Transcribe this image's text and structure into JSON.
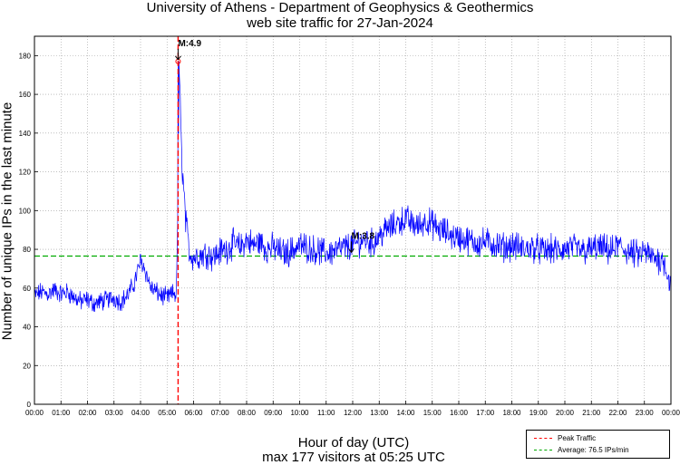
{
  "chart_data": {
    "type": "line",
    "title": "University of Athens - Department of Geophysics & Geothermics",
    "subtitle": "web site traffic for 27-Jan-2024",
    "xlabel": "Hour of day (UTC)",
    "xlabel_note": "max 177 visitors at 05:25 UTC",
    "ylabel": "Number of unique IPs in the last minute",
    "xlim": [
      0,
      24
    ],
    "ylim": [
      0,
      190
    ],
    "grid": true,
    "x_ticks": [
      "00:00",
      "01:00",
      "02:00",
      "03:00",
      "04:00",
      "05:00",
      "06:00",
      "07:00",
      "08:00",
      "09:00",
      "10:00",
      "11:00",
      "12:00",
      "13:00",
      "14:00",
      "15:00",
      "16:00",
      "17:00",
      "18:00",
      "19:00",
      "20:00",
      "21:00",
      "22:00",
      "23:00",
      "00:00"
    ],
    "y_ticks": [
      "0",
      "20",
      "40",
      "60",
      "80",
      "100",
      "120",
      "140",
      "160",
      "180"
    ],
    "series": [
      {
        "name": "traffic",
        "color": "#0000ff",
        "x": [
          0,
          0.25,
          0.5,
          0.75,
          1,
          1.25,
          1.5,
          1.75,
          2,
          2.25,
          2.5,
          2.75,
          3,
          3.25,
          3.5,
          3.75,
          4,
          4.1,
          4.25,
          4.4,
          4.6,
          4.8,
          5,
          5.2,
          5.35,
          5.42,
          5.45,
          5.55,
          5.7,
          5.85,
          6,
          6.25,
          6.5,
          6.75,
          7,
          7.25,
          7.5,
          7.75,
          8,
          8.25,
          8.5,
          8.75,
          9,
          9.25,
          9.5,
          9.75,
          10,
          10.25,
          10.5,
          10.75,
          11,
          11.25,
          11.5,
          11.75,
          12,
          12.25,
          12.5,
          12.75,
          13,
          13.25,
          13.5,
          13.75,
          14,
          14.25,
          14.5,
          14.75,
          15,
          15.25,
          15.5,
          15.75,
          16,
          16.25,
          16.5,
          16.75,
          17,
          17.25,
          17.5,
          17.75,
          18,
          18.25,
          18.5,
          18.75,
          19,
          19.25,
          19.5,
          19.75,
          20,
          20.25,
          20.5,
          20.75,
          21,
          21.25,
          21.5,
          21.75,
          22,
          22.25,
          22.5,
          22.75,
          23,
          23.25,
          23.5,
          23.75,
          23.9,
          24
        ],
        "values": [
          56,
          58,
          57,
          59,
          57,
          58,
          55,
          53,
          54,
          52,
          53,
          54,
          55,
          53,
          56,
          62,
          74,
          72,
          66,
          60,
          58,
          56,
          55,
          57,
          58,
          110,
          177,
          128,
          95,
          78,
          76,
          77,
          78,
          76,
          79,
          80,
          83,
          81,
          85,
          82,
          84,
          80,
          81,
          79,
          78,
          80,
          82,
          81,
          80,
          79,
          78,
          79,
          80,
          81,
          82,
          84,
          85,
          83,
          87,
          90,
          92,
          94,
          96,
          93,
          92,
          95,
          93,
          90,
          89,
          87,
          86,
          85,
          84,
          83,
          84,
          83,
          82,
          81,
          82,
          81,
          80,
          81,
          80,
          79,
          80,
          79,
          80,
          81,
          80,
          79,
          80,
          81,
          80,
          79,
          82,
          80,
          78,
          77,
          79,
          76,
          75,
          74,
          66,
          60
        ]
      },
      {
        "name": "Peak Traffic",
        "color": "#ff0000",
        "x": 5.4167
      },
      {
        "name": "Average: 76.5 IPs/min",
        "color": "#00aa00",
        "value": 76.5
      }
    ],
    "peak": {
      "time": "05:25",
      "value": 177
    },
    "annotations": [
      {
        "text": "M:4.9",
        "x": 5.4167,
        "y": 177
      },
      {
        "text": "M:3.8",
        "x": 11.95,
        "y": 85
      }
    ],
    "legend": {
      "position": "bottom-right",
      "entries": [
        "Peak Traffic",
        "Average: 76.5 IPs/min"
      ]
    }
  }
}
